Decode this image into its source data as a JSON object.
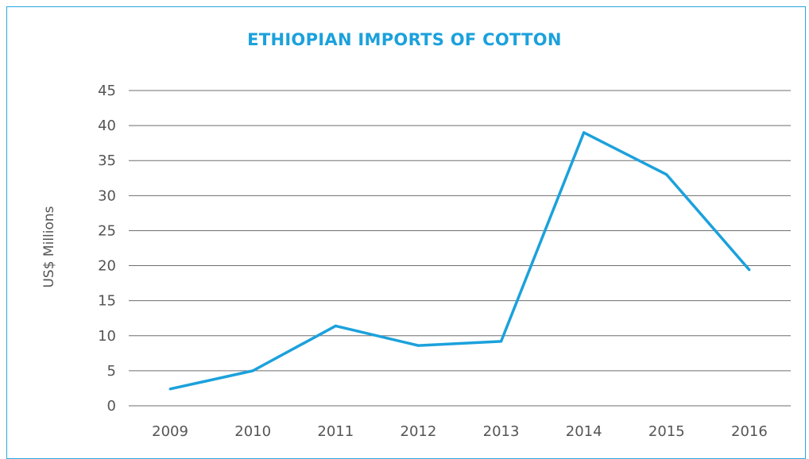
{
  "chart_data": {
    "type": "line",
    "title": "ETHIOPIAN IMPORTS OF COTTON",
    "xlabel": "",
    "ylabel": "US$ Millions",
    "categories": [
      "2009",
      "2010",
      "2011",
      "2012",
      "2013",
      "2014",
      "2015",
      "2016"
    ],
    "values": [
      2.4,
      5.0,
      11.4,
      8.6,
      9.2,
      39.0,
      33.0,
      19.4
    ],
    "ylim": [
      0,
      45
    ],
    "yticks": [
      "0",
      "5",
      "10",
      "15",
      "20",
      "25",
      "30",
      "35",
      "40",
      "45"
    ],
    "grid": true,
    "legend": "none",
    "line_color": "#1ba1dc",
    "title_color": "#1ba1dc"
  }
}
